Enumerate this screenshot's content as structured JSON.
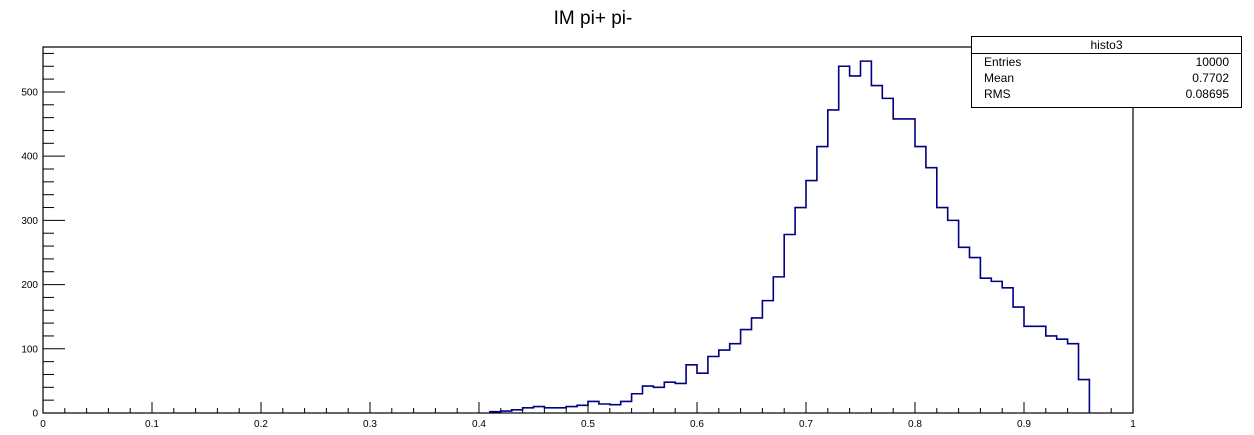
{
  "chart_data": {
    "type": "bar",
    "title": "IM pi+ pi-",
    "xlabel": "",
    "ylabel": "",
    "xlim": [
      0,
      1
    ],
    "ylim": [
      0,
      570
    ],
    "line_color": "#000080",
    "x_ticks": [
      "0",
      "0.1",
      "0.2",
      "0.3",
      "0.4",
      "0.5",
      "0.6",
      "0.7",
      "0.8",
      "0.9",
      "1"
    ],
    "y_ticks": [
      "0",
      "100",
      "200",
      "300",
      "400",
      "500"
    ],
    "bin_edges": [
      0.41,
      0.42,
      0.43,
      0.44,
      0.45,
      0.46,
      0.47,
      0.48,
      0.49,
      0.5,
      0.51,
      0.52,
      0.53,
      0.54,
      0.55,
      0.56,
      0.57,
      0.58,
      0.59,
      0.6,
      0.61,
      0.62,
      0.63,
      0.64,
      0.65,
      0.66,
      0.67,
      0.68,
      0.69,
      0.7,
      0.71,
      0.72,
      0.73,
      0.74,
      0.75,
      0.76,
      0.77,
      0.78,
      0.79,
      0.8,
      0.81,
      0.82,
      0.83,
      0.84,
      0.85,
      0.86,
      0.87,
      0.88,
      0.89,
      0.9,
      0.91,
      0.92,
      0.93,
      0.94,
      0.95,
      0.96
    ],
    "values": [
      2,
      3,
      5,
      8,
      10,
      8,
      8,
      10,
      12,
      18,
      14,
      13,
      18,
      30,
      42,
      40,
      48,
      46,
      75,
      62,
      88,
      98,
      108,
      130,
      148,
      175,
      212,
      278,
      320,
      362,
      415,
      472,
      540,
      525,
      548,
      510,
      490,
      458,
      458,
      415,
      382,
      320,
      300,
      258,
      242,
      210,
      205,
      195,
      165,
      135,
      135,
      120,
      115,
      108,
      52
    ]
  },
  "stats": {
    "name": "histo3",
    "rows": [
      {
        "label": "Entries",
        "value": "10000"
      },
      {
        "label": "Mean",
        "value": "0.7702"
      },
      {
        "label": "RMS",
        "value": "0.08695"
      }
    ]
  }
}
